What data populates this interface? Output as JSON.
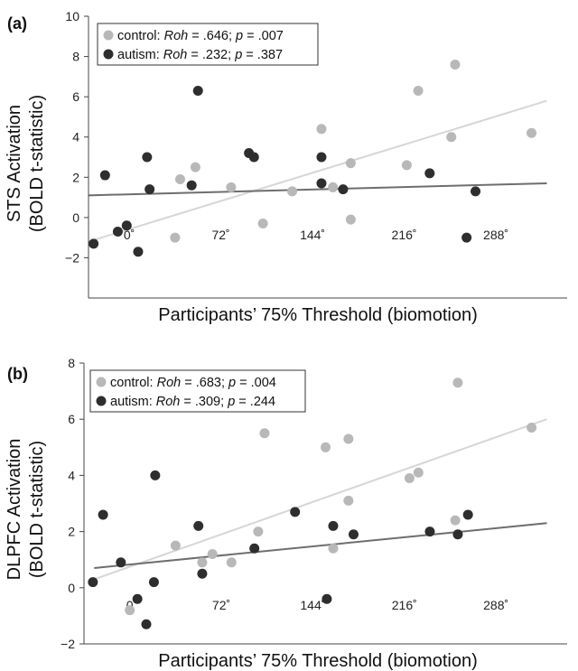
{
  "chart_data": [
    {
      "type": "scatter",
      "panel_label": "(a)",
      "ylabel_lines": [
        "STS Activation",
        "(BOLD t-statistic)"
      ],
      "xlabel": "Participants’ 75% Threshold (biomotion)",
      "ylim": [
        -4,
        10
      ],
      "yticks": [
        10,
        8,
        6,
        4,
        2,
        0,
        -2
      ],
      "ytick_labels": [
        "10",
        "8",
        "6",
        "4",
        "2",
        "0",
        "−2"
      ],
      "xlim": [
        -32,
        344
      ],
      "xticks": [
        0,
        72,
        144,
        216,
        288
      ],
      "xtick_labels": [
        "0˚",
        "72˚",
        "144˚",
        "216˚",
        "288˚"
      ],
      "legend_position": "top-left",
      "series": [
        {
          "name": "control",
          "stat_label": "Roh",
          "stat_value": ".646",
          "p_label": "p",
          "p_value": ".007",
          "color": "#b8b8b8",
          "line_color": "#d6d6d6",
          "points": [
            [
              -2,
              -0.4
            ],
            [
              36,
              -1.0
            ],
            [
              40,
              1.9
            ],
            [
              52,
              2.5
            ],
            [
              80,
              1.5
            ],
            [
              105,
              -0.3
            ],
            [
              128,
              1.3
            ],
            [
              151,
              4.4
            ],
            [
              160,
              1.5
            ],
            [
              174,
              2.7
            ],
            [
              174,
              -0.1
            ],
            [
              218,
              2.6
            ],
            [
              227,
              6.3
            ],
            [
              253,
              4.0
            ],
            [
              256,
              7.6
            ],
            [
              316,
              4.2
            ]
          ],
          "fit": [
            [
              -32,
              -1.2
            ],
            [
              328,
              5.8
            ]
          ]
        },
        {
          "name": "autism",
          "stat_label": "Roh",
          "stat_value": ".232",
          "p_label": "p",
          "p_value": ".387",
          "color": "#2e2e2e",
          "line_color": "#6e6e6e",
          "points": [
            [
              -28,
              -1.3
            ],
            [
              -19,
              2.1
            ],
            [
              -9,
              -0.7
            ],
            [
              -2,
              -0.4
            ],
            [
              7,
              -1.7
            ],
            [
              14,
              3.0
            ],
            [
              16,
              1.4
            ],
            [
              49,
              1.6
            ],
            [
              54,
              6.3
            ],
            [
              94,
              3.2
            ],
            [
              98,
              3.0
            ],
            [
              151,
              3.0
            ],
            [
              151,
              1.7
            ],
            [
              168,
              1.4
            ],
            [
              236,
              2.2
            ],
            [
              265,
              -1.0
            ],
            [
              272,
              1.3
            ]
          ],
          "fit": [
            [
              -32,
              1.1
            ],
            [
              328,
              1.7
            ]
          ]
        }
      ]
    },
    {
      "type": "scatter",
      "panel_label": "(b)",
      "ylabel_lines": [
        "DLPFC Activation",
        "(BOLD t-statistic)"
      ],
      "xlabel": "Participants’ 75% Threshold (biomotion)",
      "ylim": [
        -2,
        8
      ],
      "yticks": [
        8,
        6,
        4,
        2,
        0,
        -2
      ],
      "ytick_labels": [
        "8",
        "6",
        "4",
        "2",
        "0",
        "−2"
      ],
      "xlim": [
        -36,
        344
      ],
      "xticks": [
        0,
        72,
        144,
        216,
        288
      ],
      "xtick_labels": [
        "0",
        "72˚",
        "144˚",
        "216˚",
        "288˚"
      ],
      "legend_position": "top-left",
      "series": [
        {
          "name": "control",
          "stat_label": "Roh",
          "stat_value": ".683",
          "p_label": "p",
          "p_value": ".004",
          "color": "#b8b8b8",
          "line_color": "#d6d6d6",
          "points": [
            [
              0,
              -0.8
            ],
            [
              36,
              1.5
            ],
            [
              57,
              0.9
            ],
            [
              65,
              1.2
            ],
            [
              80,
              0.9
            ],
            [
              101,
              2.0
            ],
            [
              106,
              5.5
            ],
            [
              154,
              5.0
            ],
            [
              160,
              1.4
            ],
            [
              172,
              3.1
            ],
            [
              172,
              5.3
            ],
            [
              220,
              3.9
            ],
            [
              227,
              4.1
            ],
            [
              256,
              2.4
            ],
            [
              258,
              7.3
            ],
            [
              316,
              5.7
            ]
          ],
          "fit": [
            [
              -28,
              0.3
            ],
            [
              328,
              6.0
            ]
          ]
        },
        {
          "name": "autism",
          "stat_label": "Roh",
          "stat_value": ".309",
          "p_label": "p",
          "p_value": ".244",
          "color": "#2e2e2e",
          "line_color": "#6e6e6e",
          "points": [
            [
              -29,
              0.2
            ],
            [
              -21,
              2.6
            ],
            [
              -7,
              0.9
            ],
            [
              6,
              -0.4
            ],
            [
              13,
              -1.3
            ],
            [
              20,
              4.0
            ],
            [
              19,
              0.2
            ],
            [
              54,
              2.2
            ],
            [
              57,
              0.5
            ],
            [
              98,
              1.4
            ],
            [
              130,
              2.7
            ],
            [
              160,
              2.2
            ],
            [
              155,
              -0.4
            ],
            [
              176,
              1.9
            ],
            [
              236,
              2.0
            ],
            [
              258,
              1.9
            ],
            [
              266,
              2.6
            ]
          ],
          "fit": [
            [
              -28,
              0.7
            ],
            [
              328,
              2.3
            ]
          ]
        }
      ]
    }
  ]
}
